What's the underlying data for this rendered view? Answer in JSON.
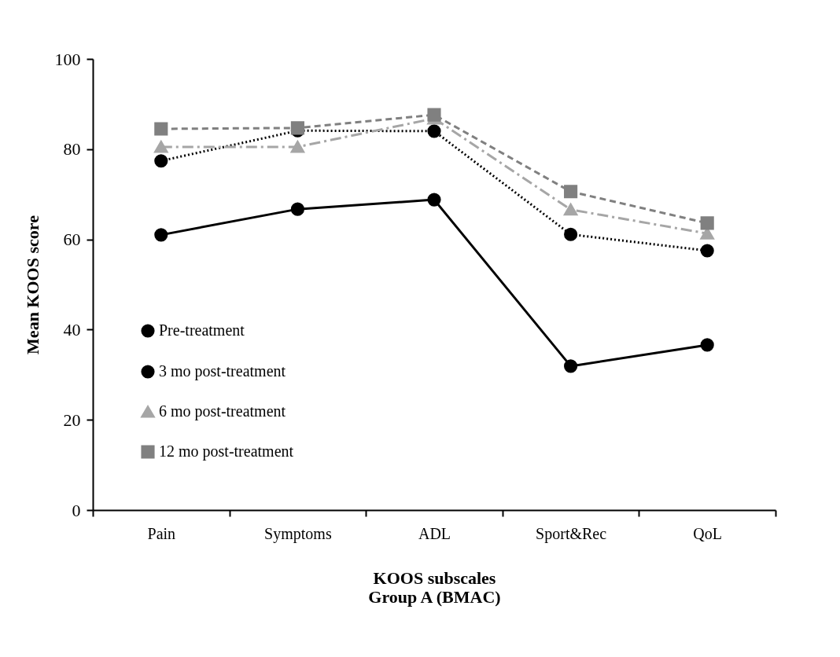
{
  "chart_data": {
    "type": "line",
    "xlabel": "KOOS subscales\nGroup A (BMAC)",
    "ylabel": "Mean KOOS score",
    "categories": [
      "Pain",
      "Symptoms",
      "ADL",
      "Sport&Rec",
      "QoL"
    ],
    "series": [
      {
        "name": "Pre-treatment",
        "color": "#000000",
        "marker": "circle",
        "line_style": "solid",
        "values": [
          61.0,
          66.7,
          68.8,
          31.9,
          36.6
        ]
      },
      {
        "name": "3 mo post-treatment",
        "color": "#000000",
        "marker": "circle",
        "line_style": "dotted",
        "values": [
          77.4,
          84.1,
          84.0,
          61.1,
          57.5
        ]
      },
      {
        "name": "6 mo post-treatment",
        "color": "#a6a6a6",
        "marker": "triangle",
        "line_style": "dashdot",
        "values": [
          80.5,
          80.5,
          86.8,
          66.6,
          61.3
        ]
      },
      {
        "name": "12 mo post-treatment",
        "color": "#808080",
        "marker": "square",
        "line_style": "dashed",
        "values": [
          84.5,
          84.7,
          87.6,
          70.6,
          63.6
        ]
      }
    ],
    "ylim": [
      0,
      100
    ],
    "yticks": [
      0,
      20,
      40,
      60,
      80,
      100
    ],
    "grid": false,
    "legend": "bottom left"
  }
}
